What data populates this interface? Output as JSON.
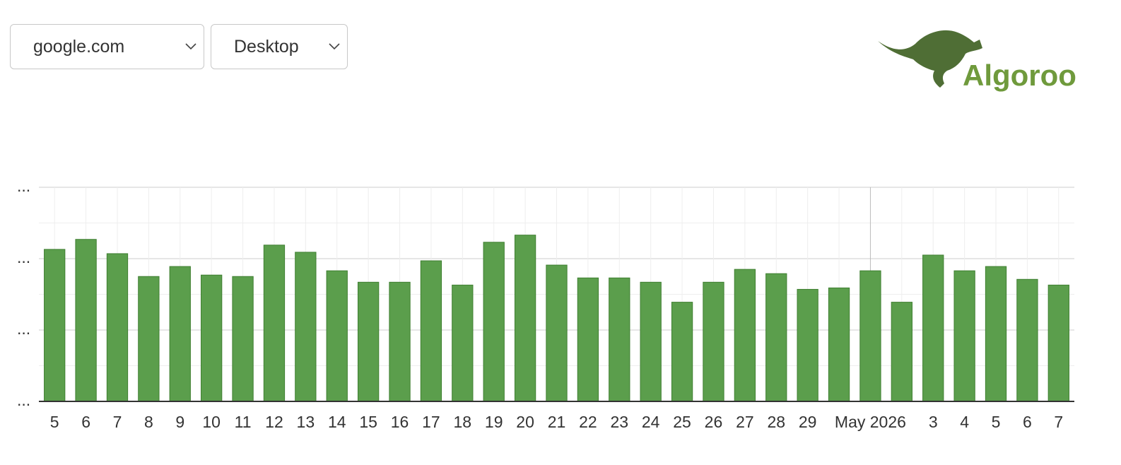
{
  "controls": {
    "site": "google.com",
    "device": "Desktop"
  },
  "logo": "Algoroo",
  "chart_data": {
    "type": "bar",
    "categories": [
      "5",
      "6",
      "7",
      "8",
      "9",
      "10",
      "11",
      "12",
      "13",
      "14",
      "15",
      "16",
      "17",
      "18",
      "19",
      "20",
      "21",
      "22",
      "23",
      "24",
      "25",
      "26",
      "27",
      "28",
      "29",
      null,
      "May 2026",
      null,
      "3",
      "4",
      "5",
      "6",
      "7"
    ],
    "values": [
      2.13,
      2.27,
      2.07,
      1.75,
      1.89,
      1.77,
      1.75,
      2.19,
      2.09,
      1.83,
      1.67,
      1.67,
      1.97,
      1.63,
      2.23,
      2.33,
      1.91,
      1.73,
      1.73,
      1.67,
      1.39,
      1.67,
      1.85,
      1.79,
      1.57,
      1.59,
      1.83,
      1.39,
      2.05,
      1.83,
      1.89,
      1.71,
      1.63
    ],
    "color": "#5b9e4c",
    "ylim": [
      0,
      3
    ],
    "yticks": [
      {
        "value": 0,
        "label": "..."
      },
      {
        "value": 1,
        "label": "..."
      },
      {
        "value": 2,
        "label": "..."
      },
      {
        "value": 3,
        "label": "..."
      }
    ],
    "grid": true
  }
}
